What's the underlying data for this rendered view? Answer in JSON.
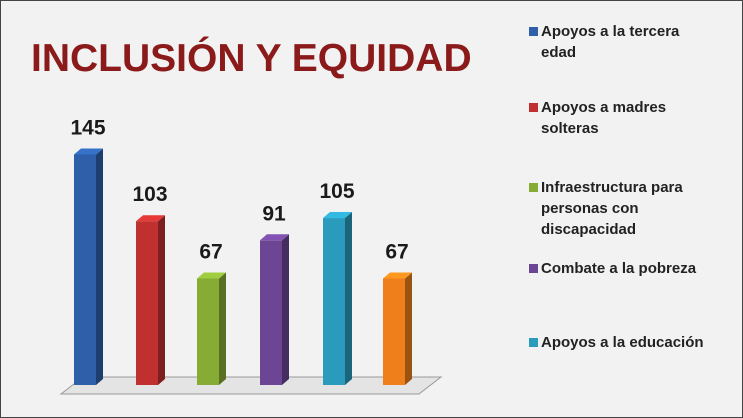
{
  "chart_data": {
    "type": "bar3d",
    "title": "INCLUSIÓN Y EQUIDAD",
    "categories": [
      "Apoyos a la tercera edad",
      "Apoyos a madres solteras",
      "Infraestructura para personas con discapacidad",
      "Combate a la pobreza",
      "Apoyos a la educación",
      null
    ],
    "values": [
      145,
      103,
      67,
      91,
      105,
      67
    ],
    "colors": [
      "#2e5fa8",
      "#c0302f",
      "#86ac36",
      "#6c4594",
      "#2a9bbd",
      "#ef7f1a"
    ]
  }
}
